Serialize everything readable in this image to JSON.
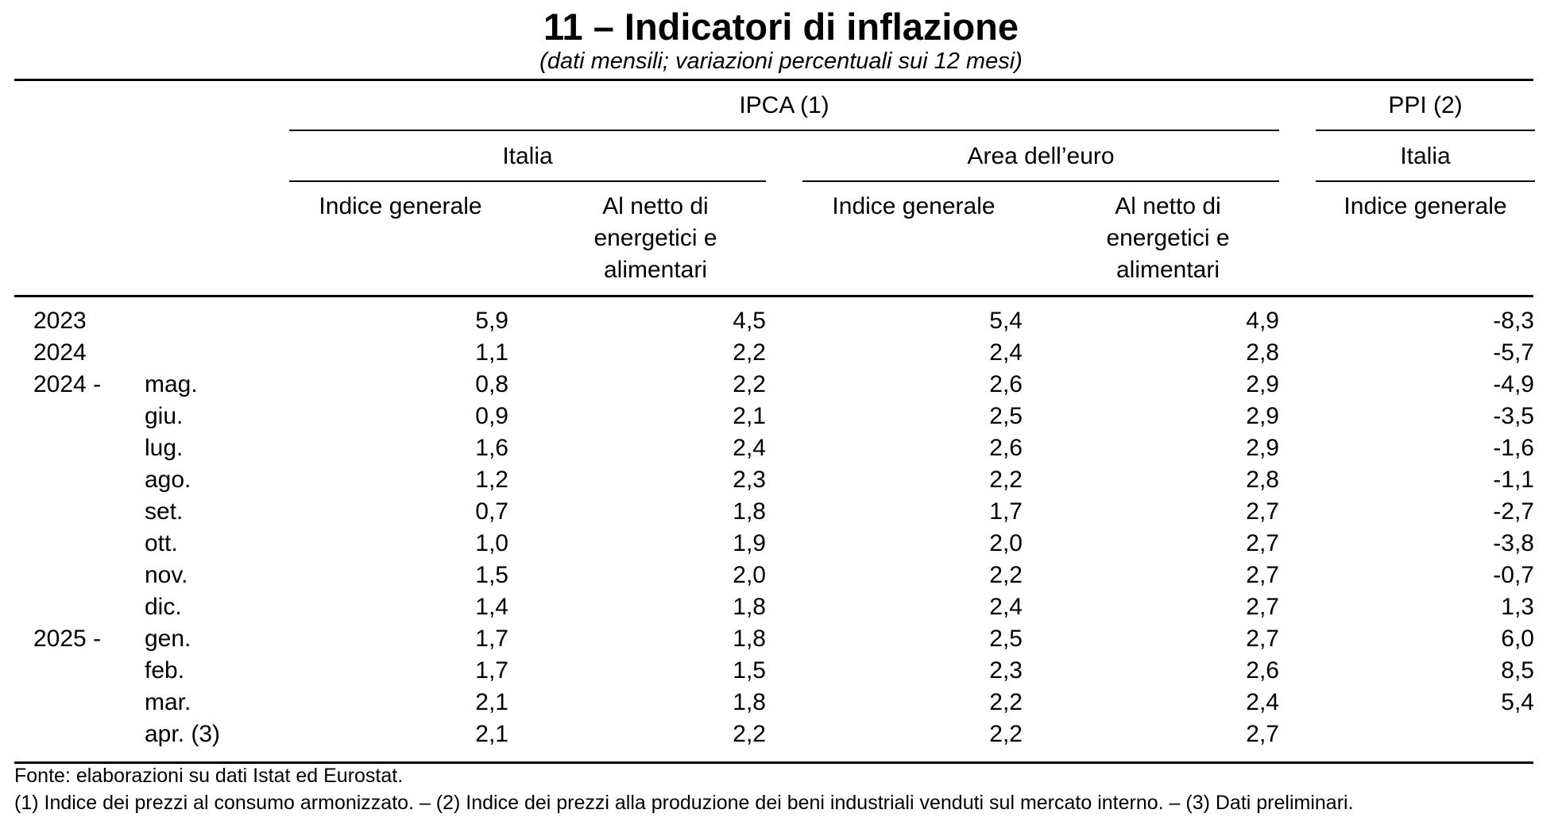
{
  "title": "11 – Indicatori di inflazione",
  "subtitle": "(dati mensili; variazioni percentuali sui 12 mesi)",
  "headers": {
    "ipca": "IPCA (1)",
    "ppi": "PPI (2)",
    "italia": "Italia",
    "area_euro": "Area dell’euro",
    "ppi_italia": "Italia",
    "columns": [
      "Indice generale",
      "Al netto di energetici e alimentari",
      "Indice generale",
      "Al netto di energetici e alimentari",
      "Indice generale"
    ]
  },
  "rows": [
    {
      "year": "2023",
      "month": "",
      "values": [
        "5,9",
        "4,5",
        "5,4",
        "4,9",
        "-8,3"
      ]
    },
    {
      "year": "2024",
      "month": "",
      "values": [
        "1,1",
        "2,2",
        "2,4",
        "2,8",
        "-5,7"
      ]
    },
    {
      "year": "2024 -",
      "month": "mag.",
      "values": [
        "0,8",
        "2,2",
        "2,6",
        "2,9",
        "-4,9"
      ]
    },
    {
      "year": "",
      "month": "giu.",
      "values": [
        "0,9",
        "2,1",
        "2,5",
        "2,9",
        "-3,5"
      ]
    },
    {
      "year": "",
      "month": "lug.",
      "values": [
        "1,6",
        "2,4",
        "2,6",
        "2,9",
        "-1,6"
      ]
    },
    {
      "year": "",
      "month": "ago.",
      "values": [
        "1,2",
        "2,3",
        "2,2",
        "2,8",
        "-1,1"
      ]
    },
    {
      "year": "",
      "month": "set.",
      "values": [
        "0,7",
        "1,8",
        "1,7",
        "2,7",
        "-2,7"
      ]
    },
    {
      "year": "",
      "month": "ott.",
      "values": [
        "1,0",
        "1,9",
        "2,0",
        "2,7",
        "-3,8"
      ]
    },
    {
      "year": "",
      "month": "nov.",
      "values": [
        "1,5",
        "2,0",
        "2,2",
        "2,7",
        "-0,7"
      ]
    },
    {
      "year": "",
      "month": "dic.",
      "values": [
        "1,4",
        "1,8",
        "2,4",
        "2,7",
        "1,3"
      ]
    },
    {
      "year": "2025 -",
      "month": "gen.",
      "values": [
        "1,7",
        "1,8",
        "2,5",
        "2,7",
        "6,0"
      ]
    },
    {
      "year": "",
      "month": "feb.",
      "values": [
        "1,7",
        "1,5",
        "2,3",
        "2,6",
        "8,5"
      ]
    },
    {
      "year": "",
      "month": "mar.",
      "values": [
        "2,1",
        "1,8",
        "2,2",
        "2,4",
        "5,4"
      ]
    },
    {
      "year": "",
      "month": "apr. (3)",
      "values": [
        "2,1",
        "2,2",
        "2,2",
        "2,7",
        ""
      ]
    }
  ],
  "footer": {
    "source": "Fonte: elaborazioni su dati Istat ed Eurostat.",
    "notes": "(1) Indice dei prezzi al consumo armonizzato. – (2) Indice dei prezzi alla produzione dei beni industriali venduti sul mercato interno. – (3) Dati preliminari."
  }
}
